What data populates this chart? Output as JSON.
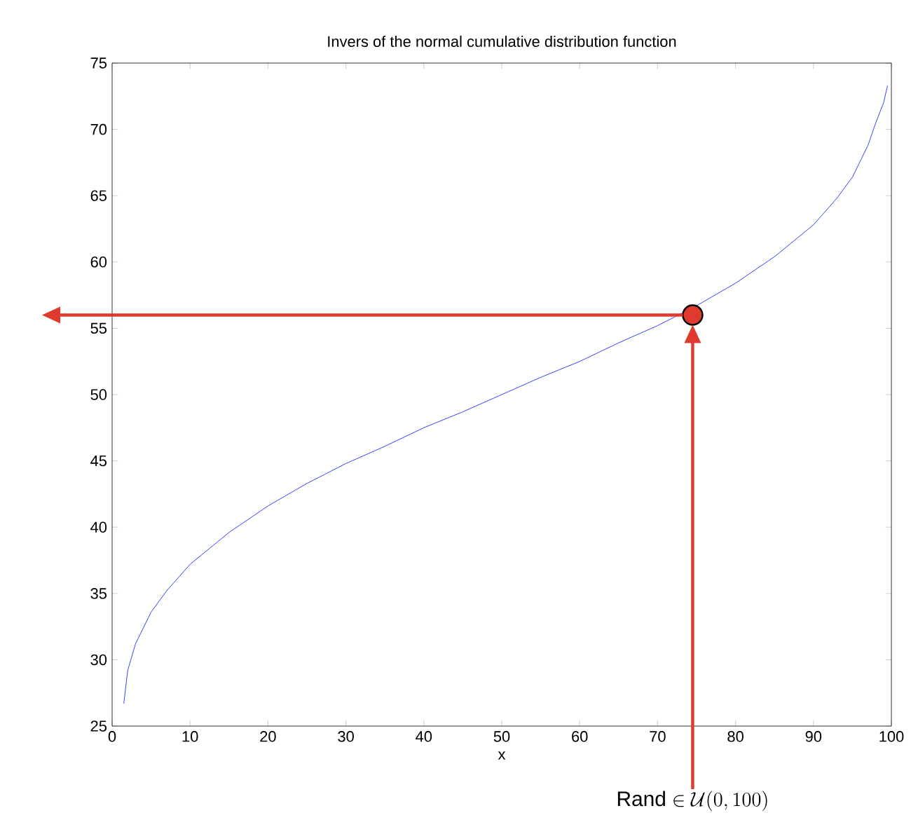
{
  "chart_data": {
    "type": "line",
    "title": "Invers of the normal cumulative distribution function",
    "xlabel": "x",
    "xlim": [
      0,
      100
    ],
    "xticks": [
      0,
      10,
      20,
      30,
      40,
      50,
      60,
      70,
      80,
      90,
      100
    ],
    "ylim": [
      25,
      75
    ],
    "yticks": [
      25,
      30,
      35,
      40,
      45,
      50,
      55,
      60,
      65,
      70,
      75
    ],
    "grid": false,
    "series": [
      {
        "color": "#3344ff",
        "marker": "none",
        "x": [
          1.5,
          2,
          3,
          5,
          7,
          10,
          15,
          20,
          25,
          30,
          35,
          40,
          45,
          50,
          55,
          60,
          65,
          70,
          75,
          80,
          85,
          90,
          93,
          95,
          97,
          98,
          99,
          99.5
        ],
        "values": [
          26.7,
          29.2,
          31.2,
          33.6,
          35.2,
          37.2,
          39.6,
          41.6,
          43.3,
          44.8,
          46.1,
          47.5,
          48.7,
          50.0,
          51.3,
          52.5,
          53.9,
          55.2,
          56.7,
          58.4,
          60.4,
          62.8,
          64.8,
          66.4,
          68.8,
          70.5,
          72.0,
          73.3
        ]
      },
      {
        "type": "scatter",
        "color": "#e0392d",
        "marker": "circle",
        "x": [
          74.5
        ],
        "values": [
          56
        ]
      }
    ],
    "ref_lines": [
      {
        "axis": "y",
        "value": 56,
        "color": "#e0392d"
      },
      {
        "axis": "x",
        "value": 74.5,
        "color": "#e0392d"
      }
    ],
    "annotations": [
      "\\mathrm{Rand} \\in \\mathcal{U}(0,100)"
    ]
  }
}
